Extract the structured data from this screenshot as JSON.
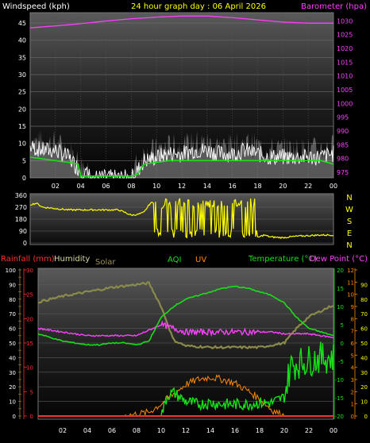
{
  "header": {
    "title": "24 hour graph day : 06 April 2026",
    "left_label": "Windspeed (kph)",
    "right_label": "Barometer (hpa)"
  },
  "legend": {
    "rainfall": "Rainfall (mm)",
    "humidity": "Humidity",
    "solar": "Solar",
    "aqi": "AQI",
    "uv": "UV",
    "temperature": "Temperature (°C)",
    "dewpoint": "Dew Point (°C)"
  },
  "colors": {
    "wind": "#ffffff",
    "gust_band": "#9a9a9a",
    "avg_wind": "#17e317",
    "barometer": "#ff40ff",
    "direction": "#ffff00",
    "humidity": "#8a8a4a",
    "solar": "#ffff00",
    "uv": "#ff8800",
    "temperature": "#18e018",
    "dewpoint": "#ff40ff",
    "rain": "#ff3030",
    "title": "#ffff00",
    "axis_text": "#ffffff"
  },
  "chart_data": [
    {
      "type": "line",
      "title": "24 hour graph day : 06 April 2026",
      "x_tick_labels": [
        "02",
        "04",
        "06",
        "08",
        "10",
        "12",
        "14",
        "16",
        "18",
        "20",
        "22",
        "00"
      ],
      "x_hours": [
        2,
        4,
        6,
        8,
        10,
        12,
        14,
        16,
        18,
        20,
        22,
        24
      ],
      "ylabel": "Windspeed (kph)",
      "ylim": [
        0,
        48
      ],
      "y_ticks": [
        0,
        5,
        10,
        15,
        20,
        25,
        30,
        35,
        40,
        45
      ],
      "y2label": "Barometer (hpa)",
      "y2lim": [
        973,
        1033
      ],
      "y2_ticks": [
        975,
        980,
        985,
        990,
        995,
        1000,
        1005,
        1010,
        1015,
        1020,
        1025,
        1030
      ],
      "series": [
        {
          "name": "Windspeed",
          "x": [
            0,
            1,
            2,
            3,
            4,
            5,
            6,
            7,
            8,
            8.5,
            9,
            10,
            11,
            12,
            13,
            14,
            15,
            16,
            17,
            18,
            19,
            20,
            21,
            22,
            23,
            24
          ],
          "values": [
            9,
            8,
            8,
            6,
            2,
            0,
            0,
            0,
            0,
            2,
            5,
            6,
            7,
            7,
            8,
            8,
            7,
            7,
            8,
            7,
            6,
            6,
            6,
            6,
            6,
            7
          ]
        },
        {
          "name": "Average",
          "x": [
            0,
            1,
            2,
            3,
            3.8,
            4,
            5,
            6,
            7,
            8,
            8.5,
            9,
            10,
            11,
            12,
            13,
            14,
            15,
            16,
            17,
            18,
            19,
            20,
            21,
            22,
            23,
            24
          ],
          "values": [
            6,
            5.5,
            5,
            4.5,
            4,
            0.5,
            0.5,
            0.5,
            0.5,
            0.5,
            1,
            4,
            4.5,
            5,
            5,
            5,
            5,
            5,
            5,
            5,
            5,
            5,
            5,
            5,
            5,
            5,
            4
          ]
        },
        {
          "name": "Barometer",
          "x": [
            0,
            2,
            4,
            6,
            8,
            10,
            12,
            14,
            16,
            18,
            20,
            22,
            24
          ],
          "values": [
            1027.5,
            1028.2,
            1029,
            1030,
            1030.8,
            1031.4,
            1031.8,
            1031.8,
            1031.2,
            1030.4,
            1029.6,
            1029.2,
            1029.2
          ]
        }
      ]
    },
    {
      "type": "scatter",
      "x_tick_labels": [
        "02",
        "04",
        "06",
        "08",
        "10",
        "12",
        "14",
        "16",
        "18",
        "20",
        "22",
        "00"
      ],
      "ylim": [
        0,
        360
      ],
      "y_ticks": [
        0,
        90,
        180,
        270,
        360
      ],
      "direction_labels": [
        "N",
        "W",
        "S",
        "E",
        "N"
      ],
      "series": [
        {
          "name": "Wind direction",
          "x": [
            0,
            0.5,
            1,
            2,
            3,
            4,
            5,
            6,
            7,
            8,
            8.5,
            9,
            9.5,
            10,
            10.2,
            10.6,
            11,
            11.5,
            12,
            13,
            14,
            15,
            16,
            17,
            18,
            18.5,
            19,
            20,
            21,
            22,
            23,
            24
          ],
          "values": [
            290,
            300,
            270,
            260,
            250,
            250,
            250,
            250,
            250,
            210,
            215,
            230,
            300,
            310,
            60,
            330,
            280,
            100,
            310,
            280,
            300,
            250,
            290,
            310,
            40,
            60,
            45,
            40,
            50,
            55,
            60,
            60
          ]
        }
      ]
    },
    {
      "type": "line",
      "x_tick_labels": [
        "02",
        "04",
        "06",
        "08",
        "10",
        "12",
        "14",
        "16",
        "18",
        "20",
        "22",
        "00"
      ],
      "ylabel": "Rainfall (mm)",
      "rain_ticks": [
        0,
        5,
        10,
        15,
        20,
        25,
        30
      ],
      "humidity_ticks": [
        0,
        10,
        20,
        30,
        40,
        50,
        60,
        70,
        80,
        90,
        100
      ],
      "solar_ticks": [
        0,
        50,
        100,
        150,
        200,
        250,
        300,
        350,
        400,
        450,
        500,
        550,
        600,
        650,
        700,
        750,
        800,
        850,
        900,
        950,
        1000
      ],
      "temperature_ticks": [
        -20,
        -15,
        -10,
        -5,
        0,
        5,
        10,
        15,
        20
      ],
      "uv_ticks": [
        0,
        1,
        2,
        3,
        4,
        5,
        6,
        7,
        8,
        9,
        10,
        11,
        12
      ],
      "aqi_ticks": [
        0,
        10,
        20,
        30,
        40,
        50,
        60,
        70,
        80,
        90
      ],
      "series": [
        {
          "name": "Humidity",
          "x": [
            0,
            2,
            4,
            6,
            8,
            9,
            10,
            11,
            12,
            14,
            16,
            18,
            20,
            21,
            22,
            23,
            24
          ],
          "values": [
            78,
            82,
            85,
            88,
            90,
            91,
            75,
            52,
            48,
            47,
            47,
            47,
            50,
            60,
            68,
            72,
            76
          ]
        },
        {
          "name": "Solar",
          "x": [
            0,
            6,
            7,
            8,
            9,
            10,
            11,
            12,
            13,
            14,
            15,
            16,
            17,
            18,
            19,
            19.7,
            20,
            24
          ],
          "values": [
            0,
            0,
            5,
            40,
            130,
            240,
            340,
            420,
            440,
            440,
            420,
            380,
            320,
            250,
            140,
            20,
            0,
            0
          ]
        },
        {
          "name": "UV",
          "x": [
            0,
            7,
            9,
            10,
            11,
            12,
            13,
            14,
            15,
            16,
            17,
            18,
            19,
            20,
            24
          ],
          "values": [
            0,
            0,
            0.3,
            1,
            1.8,
            2.6,
            3,
            3.2,
            3,
            2.7,
            2.1,
            1.4,
            0.5,
            0,
            0
          ]
        },
        {
          "name": "Temperature",
          "x": [
            0,
            1,
            2,
            3,
            4,
            5,
            6,
            7,
            8,
            9,
            10,
            11,
            12,
            13,
            14,
            15,
            16,
            17,
            18,
            19,
            20,
            21,
            22,
            23,
            24
          ],
          "values": [
            2.5,
            1.5,
            0.5,
            0,
            -0.5,
            -0.5,
            0,
            0,
            -0.5,
            0.5,
            7,
            10,
            12,
            13,
            14,
            15,
            15.5,
            15,
            14,
            13,
            11,
            7,
            4,
            3,
            2
          ]
        },
        {
          "name": "Dew Point",
          "x": [
            0,
            1,
            2,
            3,
            4,
            5,
            6,
            7,
            8,
            9,
            10,
            11,
            12,
            13,
            14,
            15,
            16,
            17,
            18,
            19,
            20,
            21,
            22,
            23,
            24
          ],
          "values": [
            4,
            3.5,
            3,
            2.5,
            2,
            2,
            2,
            2,
            2,
            3.5,
            5,
            4,
            3,
            3,
            3,
            3,
            3,
            3,
            3,
            3,
            2.5,
            2.5,
            2.5,
            2,
            1.5
          ]
        },
        {
          "name": "AQI",
          "x": [
            0,
            10,
            10.5,
            11,
            12,
            13,
            14,
            15,
            16,
            17,
            18,
            19,
            20,
            20.5,
            21,
            22,
            23,
            24
          ],
          "values": [
            0,
            0,
            14,
            16,
            10,
            8,
            9,
            8,
            8,
            8,
            9,
            9,
            13,
            34,
            36,
            38,
            40,
            40
          ]
        },
        {
          "name": "Rainfall",
          "x": [
            0,
            24
          ],
          "values": [
            0,
            0
          ]
        }
      ]
    }
  ]
}
